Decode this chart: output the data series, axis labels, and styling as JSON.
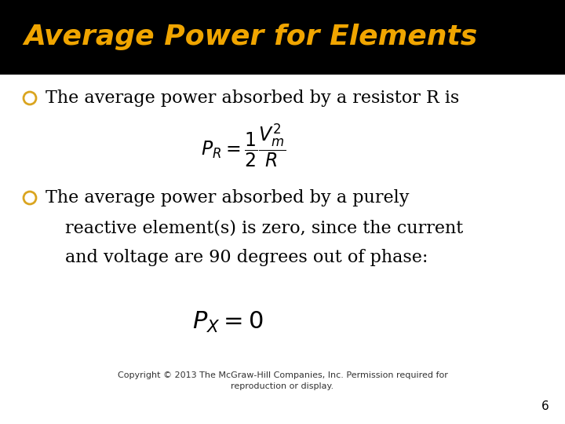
{
  "title": "Average Power for Elements",
  "title_color": "#F0A500",
  "title_bg_color": "#000000",
  "body_bg_color": "#FFFFFF",
  "bullet_color": "#DAA520",
  "bullet1_text": "The average power absorbed by a resistor R is",
  "formula1": "$P_{R} = \\dfrac{1}{2}\\dfrac{V_{m}^{2}}{R}$",
  "bullet2_line1": "The average power absorbed by a purely",
  "bullet2_line2": "reactive element(s) is zero, since the current",
  "bullet2_line3": "and voltage are 90 degrees out of phase:",
  "formula2": "$P_{X} = 0$",
  "copyright": "Copyright © 2013 The McGraw-Hill Companies, Inc. Permission required for\nreproduction or display.",
  "page_number": "6",
  "title_fontsize": 26,
  "body_fontsize": 16,
  "formula1_fontsize": 17,
  "formula2_fontsize": 22,
  "copyright_fontsize": 8
}
